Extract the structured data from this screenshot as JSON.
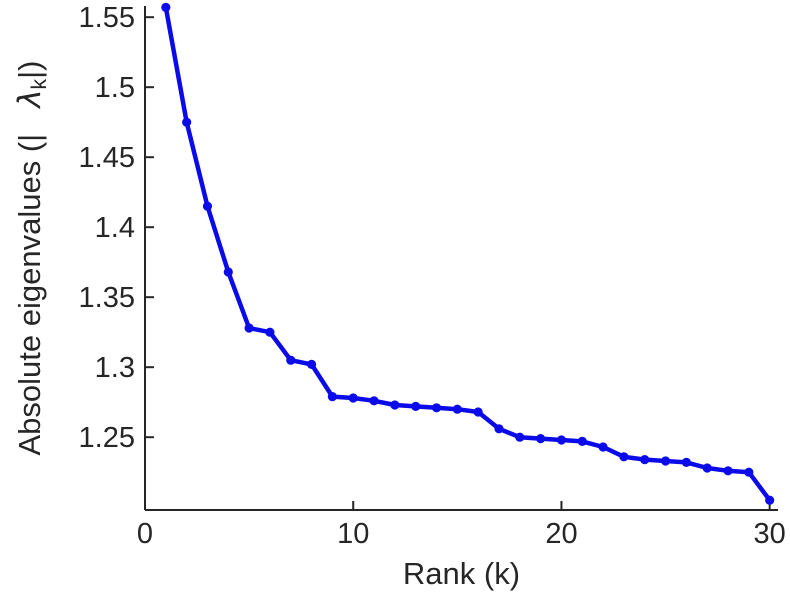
{
  "chart_data": {
    "type": "line",
    "title": "",
    "xlabel": "Rank (k)",
    "ylabel": {
      "prefix": "Absolute eigenvalues (|",
      "lambda": "λ",
      "subscript": "k",
      "suffix": "|)"
    },
    "x": [
      1,
      2,
      3,
      4,
      5,
      6,
      7,
      8,
      9,
      10,
      11,
      12,
      13,
      14,
      15,
      16,
      17,
      18,
      19,
      20,
      21,
      22,
      23,
      24,
      25,
      26,
      27,
      28,
      29,
      30
    ],
    "values": [
      1.557,
      1.475,
      1.415,
      1.368,
      1.328,
      1.325,
      1.305,
      1.302,
      1.279,
      1.278,
      1.276,
      1.273,
      1.272,
      1.271,
      1.27,
      1.268,
      1.256,
      1.25,
      1.249,
      1.248,
      1.247,
      1.243,
      1.236,
      1.234,
      1.233,
      1.232,
      1.228,
      1.226,
      1.225,
      1.205
    ],
    "xlim": [
      0,
      30.4
    ],
    "ylim": [
      1.198,
      1.558
    ],
    "xticks": {
      "values": [
        0,
        10,
        20,
        30
      ],
      "labels": [
        "0",
        "10",
        "20",
        "30"
      ]
    },
    "yticks": {
      "values": [
        1.25,
        1.3,
        1.35,
        1.4,
        1.45,
        1.5,
        1.55
      ],
      "labels": [
        "1.25",
        "1.3",
        "1.35",
        "1.4",
        "1.45",
        "1.5",
        "1.55"
      ]
    },
    "grid": false,
    "legend": null,
    "line_color": "#0b0bea",
    "axis_color": "#262626",
    "marker": "circle"
  }
}
